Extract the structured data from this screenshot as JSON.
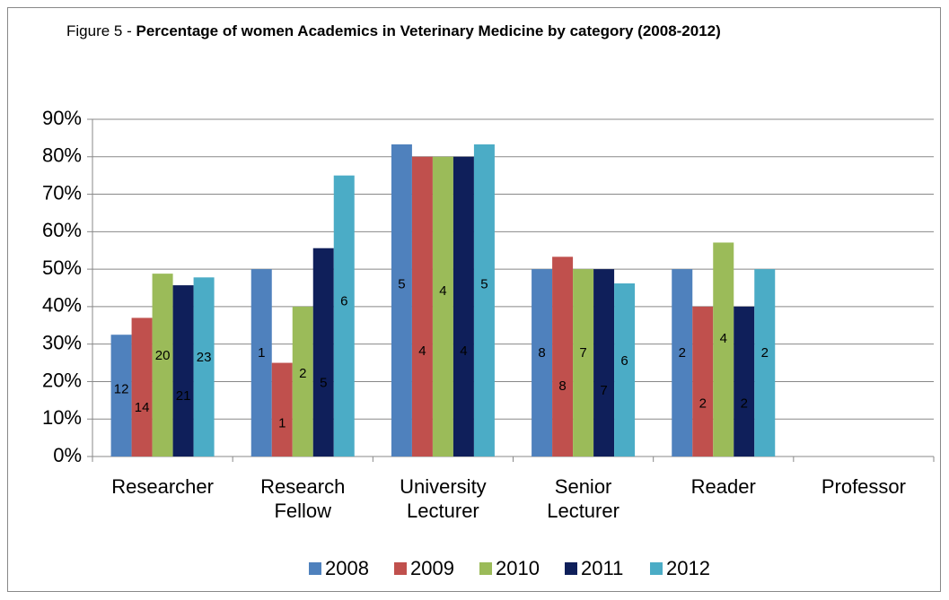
{
  "chart_data": {
    "type": "bar",
    "title_prefix": "Figure 5 - ",
    "title": "Percentage of women Academics in Veterinary Medicine by category (2008-2012)",
    "categories": [
      "Researcher",
      "Research Fellow",
      "University Lecturer",
      "Senior Lecturer",
      "Reader",
      "Professor"
    ],
    "series": [
      {
        "name": "2008",
        "color": "#4f81bd",
        "values": [
          32.5,
          50,
          83.3,
          50,
          50,
          null
        ],
        "counts": [
          12,
          1,
          5,
          8,
          2,
          null
        ]
      },
      {
        "name": "2009",
        "color": "#c0504d",
        "values": [
          37,
          25,
          80,
          53.3,
          40,
          null
        ],
        "counts": [
          14,
          1,
          4,
          8,
          2,
          null
        ]
      },
      {
        "name": "2010",
        "color": "#9bbb59",
        "values": [
          48.8,
          40,
          80,
          50,
          57.1,
          null
        ],
        "counts": [
          20,
          2,
          4,
          7,
          4,
          null
        ]
      },
      {
        "name": "2011",
        "color": "#0f1f5a",
        "values": [
          45.7,
          55.6,
          80,
          50,
          40,
          null
        ],
        "counts": [
          21,
          5,
          4,
          7,
          2,
          null
        ]
      },
      {
        "name": "2012",
        "color": "#4bacc6",
        "values": [
          47.8,
          75,
          83.3,
          46.2,
          50,
          null
        ],
        "counts": [
          23,
          6,
          5,
          6,
          2,
          null
        ]
      }
    ],
    "ylim": [
      0,
      90
    ],
    "yticks": [
      {
        "value": 0,
        "label": "0%"
      },
      {
        "value": 10,
        "label": "10%"
      },
      {
        "value": 20,
        "label": "20%"
      },
      {
        "value": 30,
        "label": "30%"
      },
      {
        "value": 40,
        "label": "40%"
      },
      {
        "value": 50,
        "label": "50%"
      },
      {
        "value": 60,
        "label": "60%"
      },
      {
        "value": 70,
        "label": "70%"
      },
      {
        "value": 80,
        "label": "80%"
      },
      {
        "value": 90,
        "label": "90%"
      }
    ],
    "grid": true,
    "legend": "bottom"
  }
}
